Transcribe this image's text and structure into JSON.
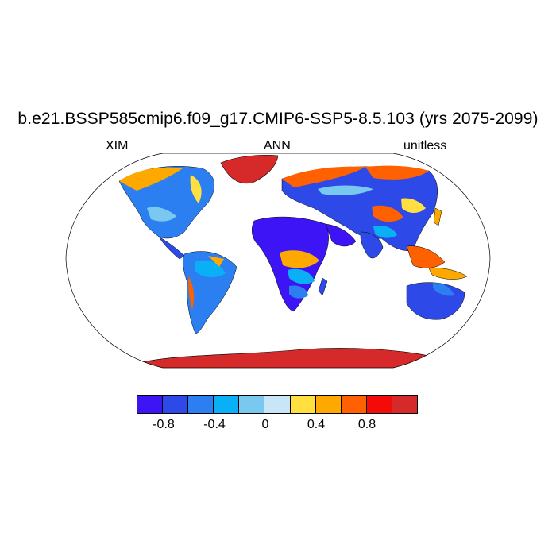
{
  "header": {
    "title": "b.e21.BSSP585cmip6.f09_g17.CMIP6-SSP5-8.5.103 (yrs 2075-2099)",
    "left_label": "XIM",
    "center_label": "ANN",
    "right_label": "unitless"
  },
  "colorbar": {
    "colors": [
      "#3d14f5",
      "#2d4ae8",
      "#2b7ff0",
      "#0ab0f5",
      "#78c8f0",
      "#c9e6f7",
      "#ffe040",
      "#ffa800",
      "#ff6000",
      "#f50a0a",
      "#d62a2a"
    ],
    "labels": [
      "-0.8",
      "-0.4",
      "0",
      "0.4",
      "0.8"
    ]
  },
  "chart_data": {
    "type": "heatmap",
    "title": "b.e21.BSSP585cmip6.f09_g17.CMIP6-SSP5-8.5.103 (yrs 2075-2099)",
    "projection": "Robinson",
    "variable": "XIM",
    "season": "ANN",
    "units": "unitless",
    "colorbar_boundaries": [
      -0.8,
      -0.6,
      -0.4,
      -0.2,
      0,
      0.2,
      0.4,
      0.6,
      0.8,
      1.0
    ],
    "colorbar_tick_labels": [
      "-0.8",
      "-0.4",
      "0",
      "0.4",
      "0.8"
    ]
  }
}
